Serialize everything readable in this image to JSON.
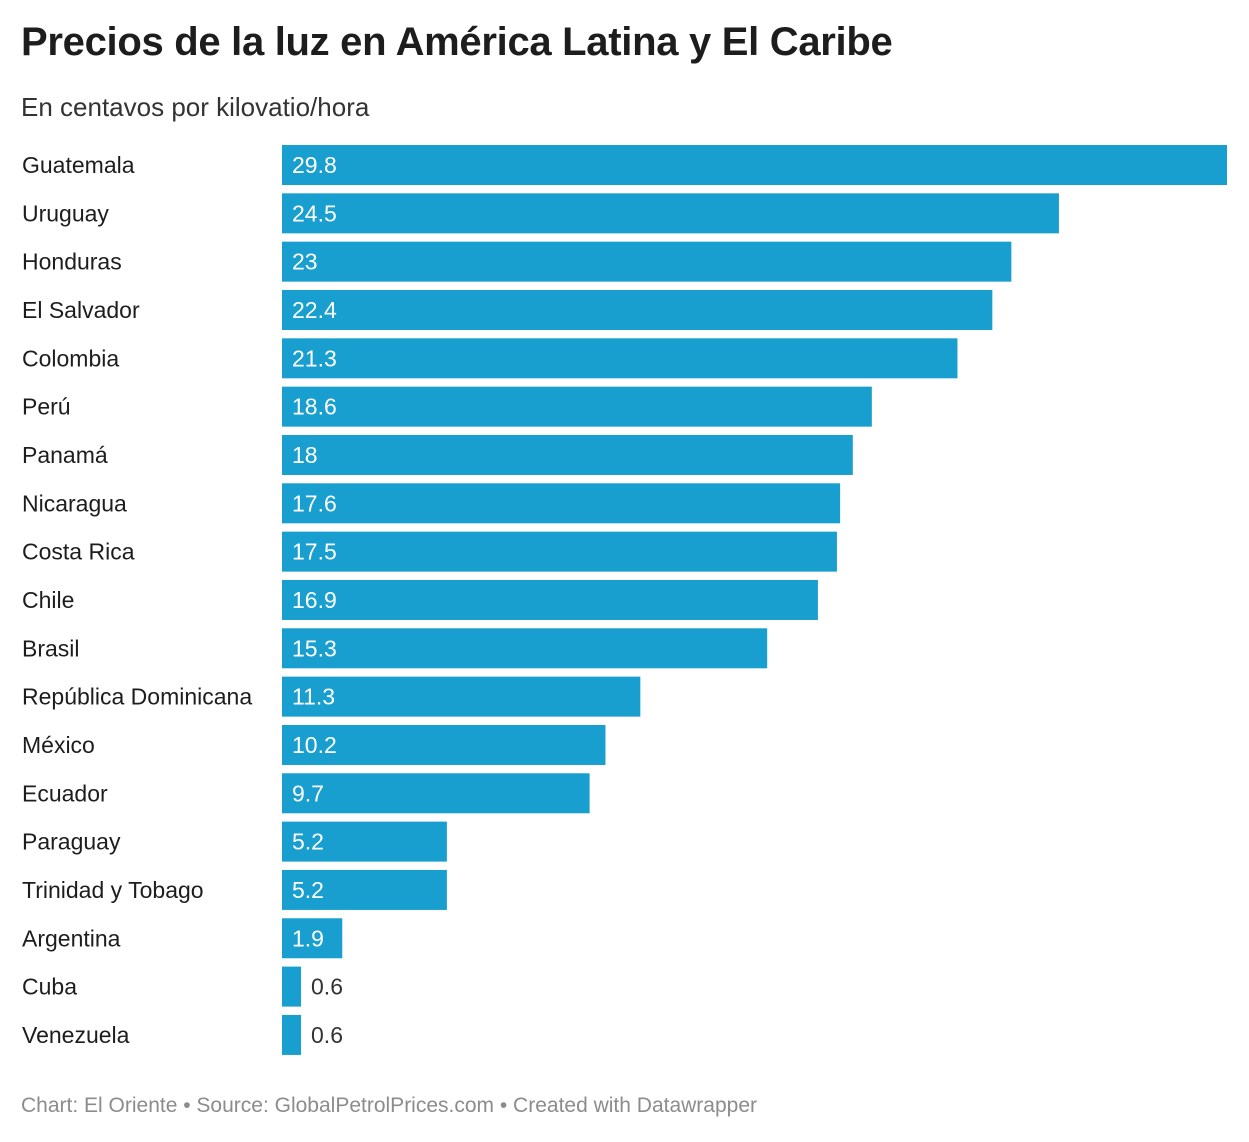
{
  "title": "Precios de la luz en América Latina y El Caribe",
  "subtitle": "En centavos por kilovatio/hora",
  "footer": "Chart: El Oriente • Source: GlobalPetrolPrices.com • Created with Datawrapper",
  "colors": {
    "bar": "#189fcf",
    "label_inside": "#ffffff",
    "label_outside": "#333333"
  },
  "chart_data": {
    "type": "bar",
    "orientation": "horizontal",
    "categories": [
      "Guatemala",
      "Uruguay",
      "Honduras",
      "El Salvador",
      "Colombia",
      "Perú",
      "Panamá",
      "Nicaragua",
      "Costa Rica",
      "Chile",
      "Brasil",
      "República Dominicana",
      "México",
      "Ecuador",
      "Paraguay",
      "Trinidad y Tobago",
      "Argentina",
      "Cuba",
      "Venezuela"
    ],
    "values": [
      29.8,
      24.5,
      23,
      22.4,
      21.3,
      18.6,
      18,
      17.6,
      17.5,
      16.9,
      15.3,
      11.3,
      10.2,
      9.7,
      5.2,
      5.2,
      1.9,
      0.6,
      0.6
    ],
    "value_labels": [
      "29.8",
      "24.5",
      "23",
      "22.4",
      "21.3",
      "18.6",
      "18",
      "17.6",
      "17.5",
      "16.9",
      "15.3",
      "11.3",
      "10.2",
      "9.7",
      "5.2",
      "5.2",
      "1.9",
      "0.6",
      "0.6"
    ],
    "xlim": [
      0,
      29.8
    ],
    "grid": false,
    "legend": "none"
  }
}
